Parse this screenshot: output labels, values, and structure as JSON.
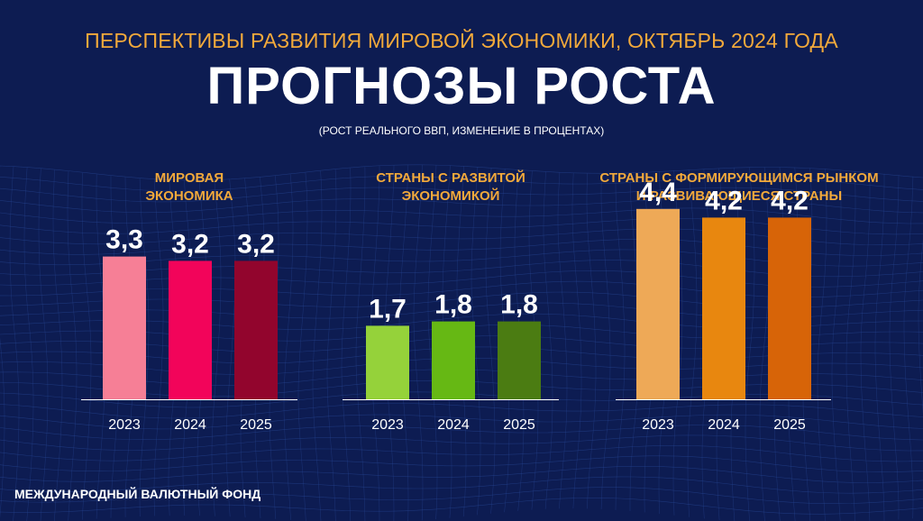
{
  "header": {
    "supertitle": "ПЕРСПЕКТИВЫ РАЗВИТИЯ МИРОВОЙ ЭКОНОМИКИ, ОКТЯБРЬ 2024 ГОДА",
    "title": "ПРОГНОЗЫ РОСТА",
    "subtitle": "(РОСТ РЕАЛЬНОГО ВВП, ИЗМЕНЕНИЕ В ПРОЦЕНТАХ)"
  },
  "footer": {
    "source": "МЕЖДУНАРОДНЫЙ ВАЛЮТНЫЙ ФОНД"
  },
  "colors": {
    "background": "#0d1c52",
    "accent": "#f2a93b",
    "grid": "#2a4a9a"
  },
  "chart_data": [
    {
      "type": "bar",
      "title": "МИРОВАЯ ЭКОНОМИКА",
      "title_lines": [
        "МИРОВАЯ",
        "ЭКОНОМИКА"
      ],
      "categories": [
        "2023",
        "2024",
        "2025"
      ],
      "values": [
        3.3,
        3.2,
        3.2
      ],
      "value_labels": [
        "3,3",
        "3,2",
        "3,2"
      ],
      "colors": [
        "#f67f96",
        "#f2045a",
        "#92052d"
      ],
      "ylim": [
        0,
        5
      ]
    },
    {
      "type": "bar",
      "title": "СТРАНЫ С РАЗВИТОЙ ЭКОНОМИКОЙ",
      "title_lines": [
        "СТРАНЫ С РАЗВИТОЙ",
        "ЭКОНОМИКОЙ"
      ],
      "categories": [
        "2023",
        "2024",
        "2025"
      ],
      "values": [
        1.7,
        1.8,
        1.8
      ],
      "value_labels": [
        "1,7",
        "1,8",
        "1,8"
      ],
      "colors": [
        "#95d23a",
        "#66b814",
        "#4b7c12"
      ],
      "ylim": [
        0,
        5
      ]
    },
    {
      "type": "bar",
      "title": "СТРАНЫ С ФОРМИРУЮЩИМСЯ РЫНКОМ И РАЗВИВАЮЩИЕСЯ СТРАНЫ",
      "title_lines": [
        "СТРАНЫ С ФОРМИРУЮЩИМСЯ РЫНКОМ",
        "И РАЗВИВАЮЩИЕСЯ СТРАНЫ"
      ],
      "categories": [
        "2023",
        "2024",
        "2025"
      ],
      "values": [
        4.4,
        4.2,
        4.2
      ],
      "value_labels": [
        "4,4",
        "4,2",
        "4,2"
      ],
      "colors": [
        "#eea957",
        "#e8870f",
        "#d76408"
      ],
      "ylim": [
        0,
        5
      ]
    }
  ]
}
